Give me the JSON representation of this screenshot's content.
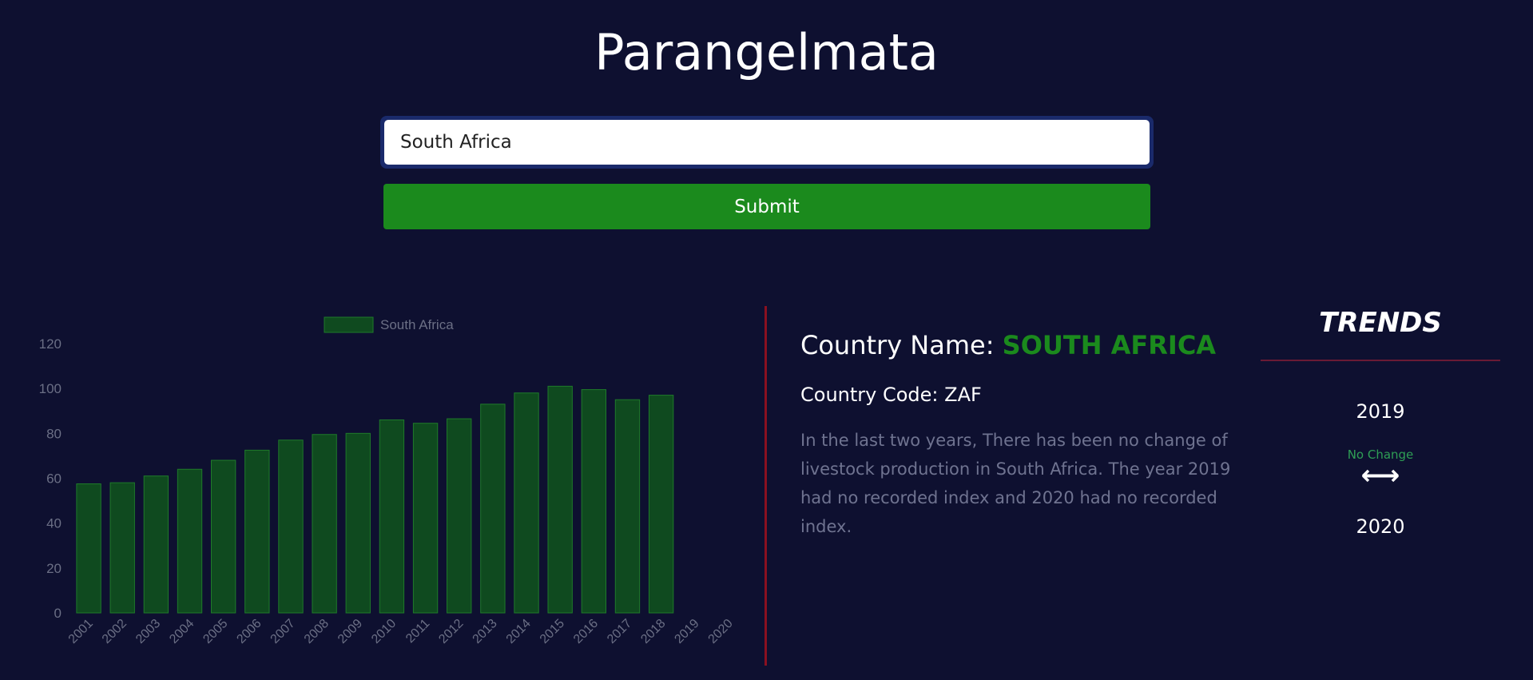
{
  "header": {
    "title": "Parangelmata"
  },
  "search": {
    "value": "South Africa",
    "submit_label": "Submit"
  },
  "colors": {
    "background": "#0e1030",
    "accent_green": "#1b8a1d",
    "bar_fill": "#0f4a1f",
    "bar_stroke": "#1f7a2a",
    "divider_red": "#8a1020",
    "trend_green": "#2e9e55"
  },
  "chart_data": {
    "type": "bar",
    "categories": [
      "2001",
      "2002",
      "2003",
      "2004",
      "2005",
      "2006",
      "2007",
      "2008",
      "2009",
      "2010",
      "2011",
      "2012",
      "2013",
      "2014",
      "2015",
      "2016",
      "2017",
      "2018",
      "2019",
      "2020"
    ],
    "series": [
      {
        "name": "South Africa",
        "values": [
          57.5,
          58,
          61,
          64,
          68,
          72.5,
          77,
          79.5,
          80,
          86,
          84.5,
          86.5,
          93,
          98,
          101,
          99.5,
          95,
          97,
          null,
          null
        ]
      }
    ],
    "ylim": [
      0,
      120
    ],
    "yticks": [
      0,
      20,
      40,
      60,
      80,
      100,
      120
    ],
    "legend_position": "top",
    "grid": false
  },
  "info": {
    "country_name_label": "Country Name:",
    "country_name_value": "SOUTH AFRICA",
    "country_code_label": "Country Code:",
    "country_code_value": "ZAF",
    "description": "In the last two years, There has been no change of livestock production in South Africa. The year 2019 had no recorded index and 2020 had no recorded index."
  },
  "trends": {
    "title": "TRENDS",
    "year_start": "2019",
    "change_label": "No Change",
    "change_icon": "left-right-arrow-icon",
    "year_end": "2020"
  }
}
